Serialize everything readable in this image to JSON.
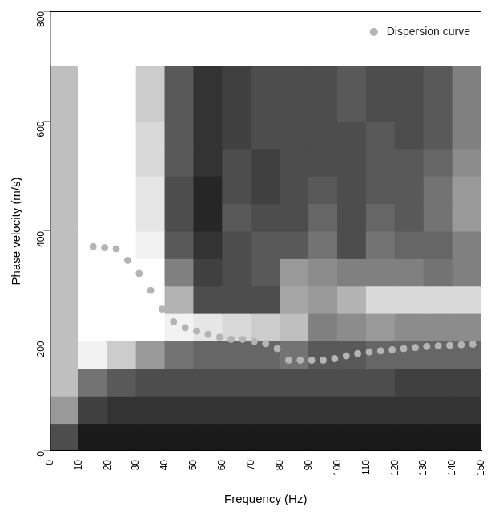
{
  "chart_data": {
    "type": "scatter",
    "x_label": "Frequency (Hz)",
    "y_label": "Phase velocity (m/s)",
    "xlim": [
      0,
      150
    ],
    "ylim": [
      0,
      800
    ],
    "xticks": [
      0,
      10,
      20,
      30,
      40,
      50,
      60,
      70,
      80,
      90,
      100,
      110,
      120,
      130,
      140,
      150
    ],
    "yticks": [
      0,
      200,
      400,
      600,
      800
    ],
    "grid": true,
    "legend": "upper right",
    "series": [
      {
        "name": "Dispersion curve",
        "color": "#b4b4b4",
        "marker": "circle",
        "x": [
          15,
          19,
          23,
          27,
          31,
          35,
          39,
          43,
          47,
          51,
          55,
          59,
          63,
          67,
          71,
          75,
          79,
          83,
          87,
          91,
          95,
          99,
          103,
          107,
          111,
          115,
          119,
          123,
          127,
          131,
          135,
          139,
          143,
          147
        ],
        "values": [
          372,
          370,
          368,
          347,
          323,
          292,
          258,
          235,
          224,
          218,
          212,
          207,
          203,
          203,
          199,
          195,
          186,
          165,
          165,
          165,
          165,
          168,
          173,
          177,
          180,
          182,
          184,
          186,
          188,
          190,
          191,
          192,
          193,
          194
        ]
      }
    ],
    "heatmap": {
      "x_edges": [
        0,
        10,
        20,
        30,
        40,
        50,
        60,
        70,
        80,
        90,
        100,
        110,
        120,
        130,
        140,
        150
      ],
      "y_edges": [
        0,
        50,
        100,
        150,
        200,
        250,
        300,
        350,
        400,
        450,
        500,
        550,
        600,
        650,
        700
      ],
      "values": [
        [
          0.3,
          0.1,
          0.1,
          0.1,
          0.1,
          0.1,
          0.1,
          0.1,
          0.1,
          0.1,
          0.1,
          0.1,
          0.1,
          0.1,
          0.1
        ],
        [
          0.6,
          0.25,
          0.2,
          0.2,
          0.2,
          0.2,
          0.2,
          0.2,
          0.2,
          0.2,
          0.2,
          0.2,
          0.2,
          0.2,
          0.2
        ],
        [
          0.75,
          0.45,
          0.35,
          0.3,
          0.3,
          0.3,
          0.3,
          0.3,
          0.3,
          0.3,
          0.3,
          0.3,
          0.25,
          0.25,
          0.25
        ],
        [
          0.75,
          0.95,
          0.8,
          0.6,
          0.45,
          0.4,
          0.4,
          0.4,
          0.45,
          0.35,
          0.35,
          0.4,
          0.4,
          0.4,
          0.4
        ],
        [
          0.75,
          1,
          1,
          1,
          0.95,
          0.9,
          0.85,
          0.8,
          0.75,
          0.5,
          0.55,
          0.6,
          0.55,
          0.55,
          0.55
        ],
        [
          0.75,
          1,
          1,
          1,
          0.7,
          0.3,
          0.3,
          0.3,
          0.65,
          0.6,
          0.7,
          0.85,
          0.85,
          0.85,
          0.85
        ],
        [
          0.75,
          1,
          1,
          1,
          0.5,
          0.25,
          0.3,
          0.35,
          0.6,
          0.55,
          0.5,
          0.5,
          0.5,
          0.45,
          0.5
        ],
        [
          0.75,
          1,
          1,
          0.95,
          0.35,
          0.2,
          0.3,
          0.35,
          0.35,
          0.45,
          0.3,
          0.45,
          0.4,
          0.4,
          0.5
        ],
        [
          0.75,
          1,
          1,
          0.9,
          0.3,
          0.15,
          0.35,
          0.3,
          0.3,
          0.4,
          0.3,
          0.4,
          0.35,
          0.45,
          0.6
        ],
        [
          0.75,
          1,
          1,
          0.9,
          0.3,
          0.15,
          0.3,
          0.25,
          0.3,
          0.35,
          0.3,
          0.35,
          0.35,
          0.45,
          0.6
        ],
        [
          0.75,
          1,
          1,
          0.85,
          0.35,
          0.2,
          0.3,
          0.25,
          0.3,
          0.3,
          0.3,
          0.35,
          0.35,
          0.4,
          0.55
        ],
        [
          0.75,
          1,
          1,
          0.85,
          0.35,
          0.2,
          0.25,
          0.3,
          0.3,
          0.3,
          0.3,
          0.35,
          0.3,
          0.35,
          0.5
        ],
        [
          0.75,
          1,
          1,
          0.8,
          0.35,
          0.2,
          0.25,
          0.3,
          0.3,
          0.3,
          0.35,
          0.3,
          0.3,
          0.35,
          0.5
        ],
        [
          0.75,
          1,
          1,
          0.8,
          0.35,
          0.2,
          0.25,
          0.3,
          0.3,
          0.3,
          0.35,
          0.3,
          0.3,
          0.35,
          0.5
        ]
      ]
    }
  }
}
